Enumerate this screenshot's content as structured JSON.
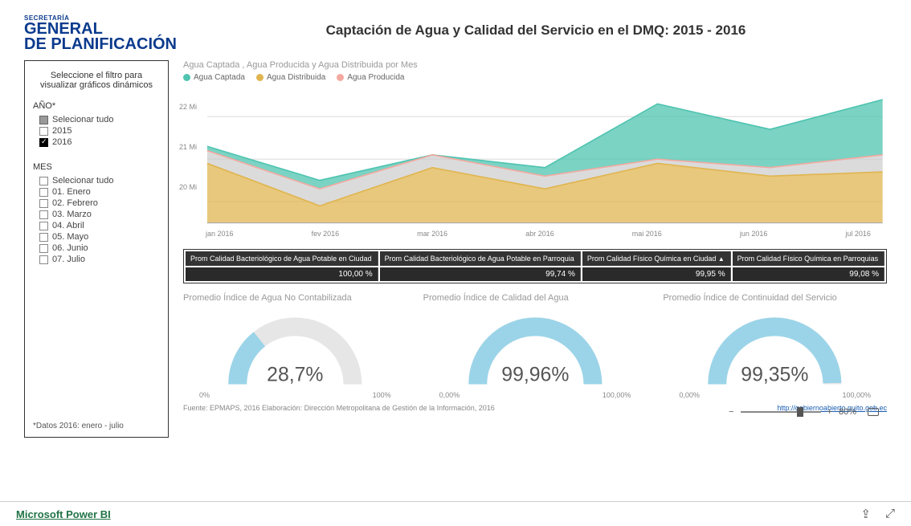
{
  "logo": {
    "top": "SECRETARÍA",
    "line1": "GENERAL",
    "line2": "DE PLANIFICACIÓN"
  },
  "title": "Captación de Agua y Calidad del Servicio en el DMQ: 2015 - 2016",
  "sidebar": {
    "title": "Seleccione el filtro para visualizar gráficos dinámicos",
    "year_label": "AÑO*",
    "year_items": [
      {
        "label": "Selecionar tudo",
        "state": "mixed"
      },
      {
        "label": "2015",
        "state": "unchecked"
      },
      {
        "label": "2016",
        "state": "checked"
      }
    ],
    "month_label": "MES",
    "month_items": [
      {
        "label": "Selecionar tudo",
        "state": "unchecked"
      },
      {
        "label": "01. Enero",
        "state": "unchecked"
      },
      {
        "label": "02. Febrero",
        "state": "unchecked"
      },
      {
        "label": "03. Marzo",
        "state": "unchecked"
      },
      {
        "label": "04. Abril",
        "state": "unchecked"
      },
      {
        "label": "05. Mayo",
        "state": "unchecked"
      },
      {
        "label": "06. Junio",
        "state": "unchecked"
      },
      {
        "label": "07. Julio",
        "state": "unchecked"
      }
    ],
    "note": "*Datos 2016: enero - julio"
  },
  "area_chart": {
    "title": "Agua Captada , Agua Producida  y Agua Distribuida  por Mes",
    "series": [
      {
        "name": "Agua Captada",
        "color": "#4fc4b0"
      },
      {
        "name": "Agua Distribuida",
        "color": "#e0b550"
      },
      {
        "name": "Agua Producida",
        "color": "#f4a9a0"
      }
    ],
    "x_categories": [
      "jan 2016",
      "fev 2016",
      "mar 2016",
      "abr 2016",
      "mai 2016",
      "jun 2016",
      "jul 2016"
    ],
    "y_ticks": [
      "22 Mi",
      "21 Mi",
      "20 Mi"
    ],
    "ylim": [
      19.5,
      22.6
    ],
    "captada": [
      21.3,
      20.5,
      21.1,
      20.8,
      22.3,
      21.7,
      22.4
    ],
    "producida": [
      21.2,
      20.3,
      21.1,
      20.6,
      21.0,
      20.8,
      21.1
    ],
    "distribuida": [
      20.9,
      19.9,
      20.8,
      20.3,
      20.9,
      20.6,
      20.7
    ],
    "background": "#ffffff",
    "grid_color": "#dddddd"
  },
  "quality_table": {
    "columns": [
      "Prom Calidad Bacteriológico de Agua Potable en Ciudad",
      "Prom Calidad Bacteriológico de Agua Potable en Parroquia",
      "Prom Calidad Físico Química en Ciudad",
      "Prom Calidad Físico Química en Parroquias"
    ],
    "sorted_col": 2,
    "values": [
      "100,00 %",
      "99,74 %",
      "99,95 %",
      "99,08 %"
    ]
  },
  "gauges": [
    {
      "title": "Promedio Índice de Agua No Contabilizada",
      "value": 28.7,
      "display": "28,7%",
      "min_label": "0%",
      "max_label": "100%",
      "color": "#9bd4e8",
      "track": "#e6e6e6"
    },
    {
      "title": "Promedio Índice de Calidad del Agua",
      "value": 99.96,
      "display": "99,96%",
      "min_label": "0,00%",
      "max_label": "100,00%",
      "color": "#9bd4e8",
      "track": "#e6e6e6"
    },
    {
      "title": "Promedio Índice de Continuidad del Servicio",
      "value": 99.35,
      "display": "99,35%",
      "min_label": "0,00%",
      "max_label": "100,00%",
      "color": "#9bd4e8",
      "track": "#e6e6e6"
    }
  ],
  "footer": {
    "source": "Fuente: EPMAPS, 2016     Elaboración: Dirección Metropolitana de Gestión de la Información, 2016",
    "link": "http://gobiernoabierto.quito.gob.ec"
  },
  "zoom": {
    "minus": "−",
    "plus": "+",
    "percent": "80%"
  },
  "bottom": {
    "brand": "Microsoft Power BI"
  }
}
